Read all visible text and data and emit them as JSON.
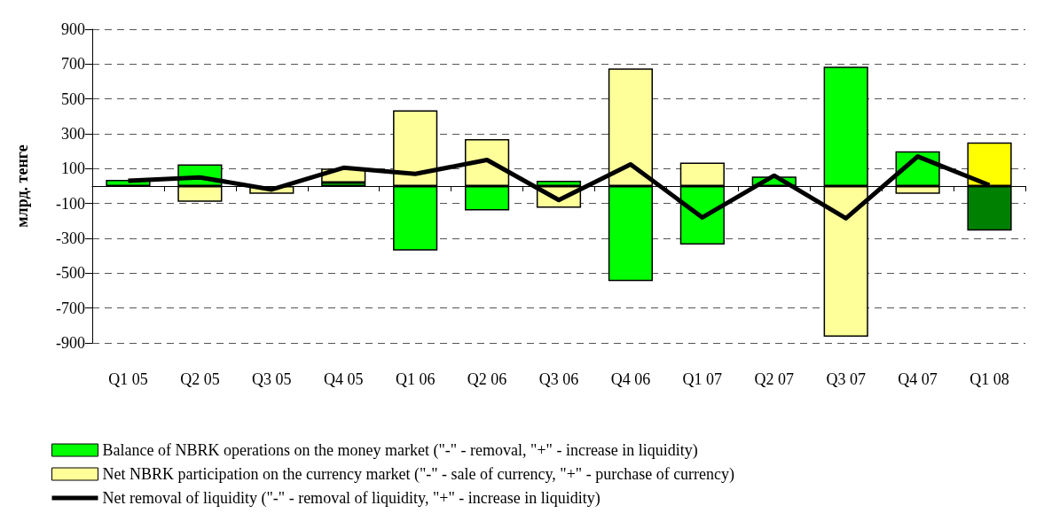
{
  "chart_data": {
    "type": "bar",
    "ylabel": "млрд. тенге",
    "categories": [
      "Q1 05",
      "Q2 05",
      "Q3 05",
      "Q4 05",
      "Q1 06",
      "Q2 06",
      "Q3 06",
      "Q4 06",
      "Q1 07",
      "Q2 07",
      "Q3 07",
      "Q4 07",
      "Q1 08"
    ],
    "stacked": true,
    "series": [
      {
        "name": "Balance of NBRK operations on the money market (\"-\" - removal, \"+\" - increase in liquidity)",
        "color": "#00ff00",
        "colors": [
          "#00ff00",
          "#00ff00",
          "#00ff00",
          "#00ff00",
          "#00ff00",
          "#00ff00",
          "#00ff00",
          "#00ff00",
          "#00ff00",
          "#00ff00",
          "#00ff00",
          "#00ff00",
          "#008000"
        ],
        "values": [
          35,
          125,
          null,
          20,
          -370,
          -140,
          30,
          -545,
          -335,
          55,
          685,
          200,
          -255
        ]
      },
      {
        "name": "Net NBRK participation on the currency market (\"-\" - sale of currency, \"+\" - purchase of currency)",
        "color": "#ffff99",
        "colors": [
          "#ffff99",
          "#ffff99",
          "#ffff99",
          "#ffff99",
          "#ffff99",
          "#ffff99",
          "#ffff99",
          "#ffff99",
          "#ffff99",
          "#ffff99",
          "#ffff99",
          "#ffff99",
          "#ffff00"
        ],
        "values": [
          null,
          -90,
          -45,
          80,
          435,
          270,
          -125,
          675,
          135,
          null,
          -865,
          -45,
          250
        ]
      },
      {
        "type": "line",
        "name": "Net removal of liquidity (\"-\" - removal of liquidity, \"+\" - increase in liquidity)",
        "color": "#000000",
        "values": [
          30,
          50,
          -20,
          105,
          70,
          150,
          -80,
          125,
          -180,
          60,
          -185,
          170,
          5
        ]
      }
    ],
    "ylim": [
      -900,
      900
    ],
    "yticks": [
      -900,
      -700,
      -500,
      -300,
      -100,
      100,
      300,
      500,
      700,
      900
    ],
    "grid": "y",
    "legend": "bottom",
    "marker": "none",
    "line_style": "solid"
  }
}
